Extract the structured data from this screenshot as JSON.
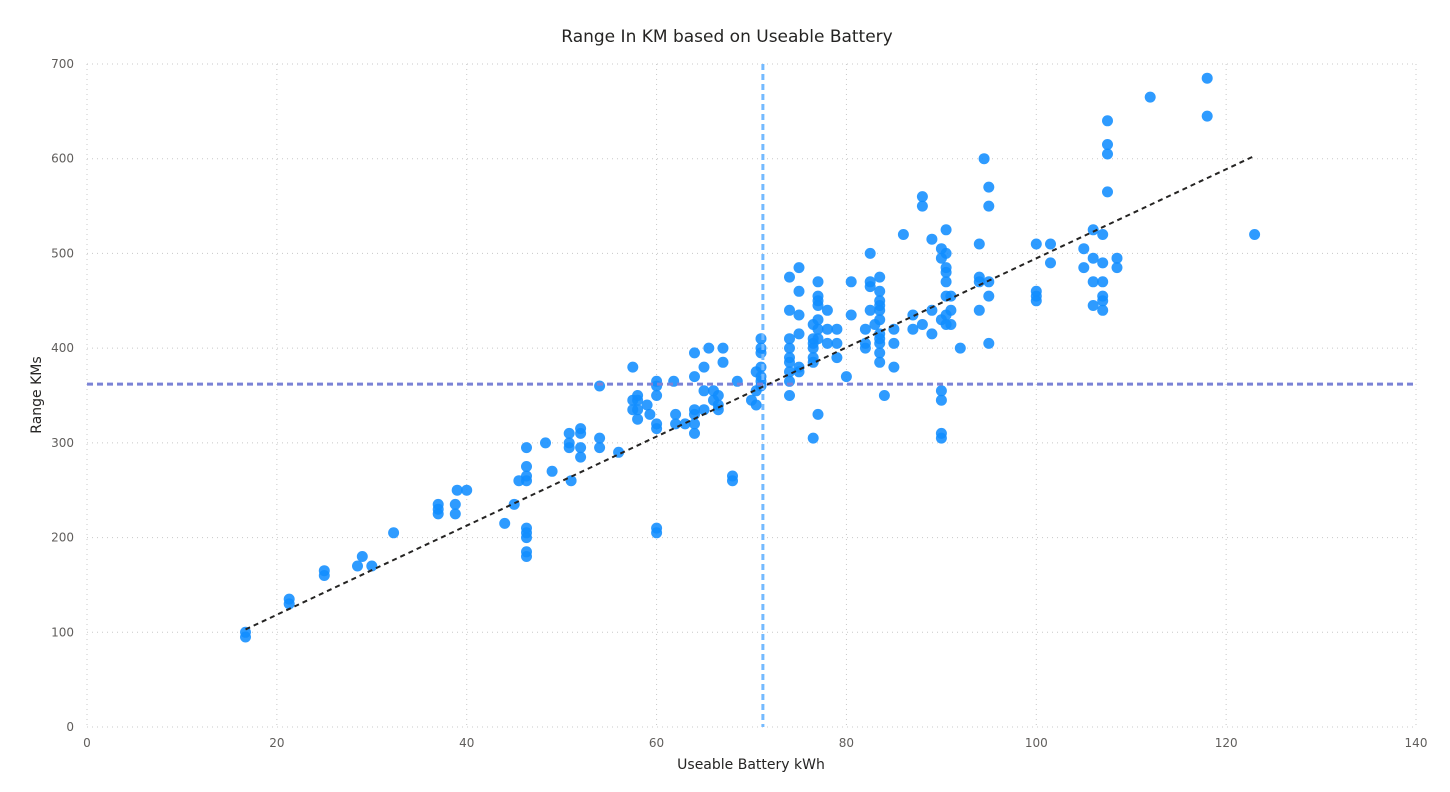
{
  "chart_data": {
    "type": "scatter",
    "title": "Range In KM based on Useable Battery",
    "xlabel": "Useable Battery kWh",
    "ylabel": "Range KMs",
    "xlim": [
      0,
      140
    ],
    "ylim": [
      0,
      700
    ],
    "x_ticks": [
      0,
      20,
      40,
      60,
      80,
      100,
      120,
      140
    ],
    "y_ticks": [
      0,
      100,
      200,
      300,
      400,
      500,
      600,
      700
    ],
    "grid": true,
    "point_color": "#118DFF",
    "trend_color": "#252423",
    "average_x": 71.2,
    "average_x_color": "#74BAFF",
    "average_y": 362,
    "average_y_color": "#7B83D6",
    "trend_line": {
      "x": [
        16.7,
        123
      ],
      "y": [
        103,
        603
      ]
    },
    "points": [
      [
        16.7,
        95
      ],
      [
        16.7,
        100
      ],
      [
        21.3,
        130
      ],
      [
        21.3,
        135
      ],
      [
        25,
        160
      ],
      [
        25,
        165
      ],
      [
        28.5,
        170
      ],
      [
        29,
        180
      ],
      [
        30,
        170
      ],
      [
        32.3,
        205
      ],
      [
        37,
        225
      ],
      [
        37,
        230
      ],
      [
        37,
        235
      ],
      [
        38.8,
        225
      ],
      [
        38.8,
        235
      ],
      [
        39,
        250
      ],
      [
        40,
        250
      ],
      [
        44,
        215
      ],
      [
        45,
        235
      ],
      [
        45.5,
        260
      ],
      [
        46.3,
        180
      ],
      [
        46.3,
        185
      ],
      [
        46.3,
        200
      ],
      [
        46.3,
        205
      ],
      [
        46.3,
        210
      ],
      [
        46.3,
        260
      ],
      [
        46.3,
        265
      ],
      [
        46.3,
        275
      ],
      [
        46.3,
        295
      ],
      [
        48.3,
        300
      ],
      [
        49,
        270
      ],
      [
        50.8,
        295
      ],
      [
        50.8,
        300
      ],
      [
        50.8,
        310
      ],
      [
        51,
        260
      ],
      [
        52,
        285
      ],
      [
        52,
        295
      ],
      [
        52,
        310
      ],
      [
        52,
        315
      ],
      [
        54,
        295
      ],
      [
        54,
        305
      ],
      [
        54,
        360
      ],
      [
        56,
        290
      ],
      [
        57.5,
        335
      ],
      [
        57.5,
        345
      ],
      [
        57.5,
        380
      ],
      [
        58,
        325
      ],
      [
        58,
        335
      ],
      [
        58,
        345
      ],
      [
        58,
        350
      ],
      [
        59,
        340
      ],
      [
        59.3,
        330
      ],
      [
        60,
        205
      ],
      [
        60,
        210
      ],
      [
        60,
        315
      ],
      [
        60,
        320
      ],
      [
        60,
        350
      ],
      [
        60,
        360
      ],
      [
        60,
        365
      ],
      [
        61.8,
        365
      ],
      [
        62,
        320
      ],
      [
        62,
        330
      ],
      [
        63,
        320
      ],
      [
        64,
        310
      ],
      [
        64,
        320
      ],
      [
        64,
        330
      ],
      [
        64,
        335
      ],
      [
        64,
        370
      ],
      [
        64,
        395
      ],
      [
        65,
        335
      ],
      [
        65,
        355
      ],
      [
        65,
        380
      ],
      [
        65.5,
        400
      ],
      [
        66,
        345
      ],
      [
        66,
        355
      ],
      [
        66.5,
        335
      ],
      [
        66.5,
        340
      ],
      [
        66.5,
        350
      ],
      [
        67,
        385
      ],
      [
        67,
        400
      ],
      [
        68,
        260
      ],
      [
        68,
        265
      ],
      [
        68.5,
        365
      ],
      [
        70,
        345
      ],
      [
        70.5,
        340
      ],
      [
        70.5,
        355
      ],
      [
        70.5,
        375
      ],
      [
        71,
        360
      ],
      [
        71,
        365
      ],
      [
        71,
        370
      ],
      [
        71,
        380
      ],
      [
        71,
        395
      ],
      [
        71,
        400
      ],
      [
        71,
        410
      ],
      [
        74,
        350
      ],
      [
        74,
        365
      ],
      [
        74,
        375
      ],
      [
        74,
        385
      ],
      [
        74,
        390
      ],
      [
        74,
        400
      ],
      [
        74,
        410
      ],
      [
        74,
        440
      ],
      [
        74,
        475
      ],
      [
        75,
        375
      ],
      [
        75,
        380
      ],
      [
        75,
        415
      ],
      [
        75,
        435
      ],
      [
        75,
        460
      ],
      [
        75,
        485
      ],
      [
        76.5,
        305
      ],
      [
        76.5,
        385
      ],
      [
        76.5,
        390
      ],
      [
        76.5,
        400
      ],
      [
        76.5,
        405
      ],
      [
        76.5,
        410
      ],
      [
        76.5,
        425
      ],
      [
        77,
        330
      ],
      [
        77,
        410
      ],
      [
        77,
        420
      ],
      [
        77,
        430
      ],
      [
        77,
        445
      ],
      [
        77,
        450
      ],
      [
        77,
        455
      ],
      [
        77,
        470
      ],
      [
        78,
        405
      ],
      [
        78,
        420
      ],
      [
        78,
        440
      ],
      [
        79,
        390
      ],
      [
        79,
        405
      ],
      [
        79,
        420
      ],
      [
        80,
        370
      ],
      [
        80.5,
        435
      ],
      [
        80.5,
        470
      ],
      [
        82,
        400
      ],
      [
        82,
        405
      ],
      [
        82,
        420
      ],
      [
        82.5,
        440
      ],
      [
        82.5,
        465
      ],
      [
        82.5,
        470
      ],
      [
        82.5,
        500
      ],
      [
        83,
        425
      ],
      [
        83.5,
        385
      ],
      [
        83.5,
        395
      ],
      [
        83.5,
        405
      ],
      [
        83.5,
        410
      ],
      [
        83.5,
        415
      ],
      [
        83.5,
        430
      ],
      [
        83.5,
        440
      ],
      [
        83.5,
        445
      ],
      [
        83.5,
        450
      ],
      [
        83.5,
        460
      ],
      [
        83.5,
        475
      ],
      [
        84,
        350
      ],
      [
        85,
        380
      ],
      [
        85,
        405
      ],
      [
        85,
        420
      ],
      [
        86,
        520
      ],
      [
        87,
        420
      ],
      [
        87,
        435
      ],
      [
        88,
        425
      ],
      [
        88,
        550
      ],
      [
        88,
        560
      ],
      [
        89,
        415
      ],
      [
        89,
        440
      ],
      [
        89,
        515
      ],
      [
        90,
        305
      ],
      [
        90,
        310
      ],
      [
        90,
        345
      ],
      [
        90,
        355
      ],
      [
        90,
        430
      ],
      [
        90,
        495
      ],
      [
        90,
        505
      ],
      [
        90.5,
        425
      ],
      [
        90.5,
        435
      ],
      [
        90.5,
        455
      ],
      [
        90.5,
        470
      ],
      [
        90.5,
        480
      ],
      [
        90.5,
        485
      ],
      [
        90.5,
        500
      ],
      [
        90.5,
        525
      ],
      [
        91,
        425
      ],
      [
        91,
        440
      ],
      [
        91,
        455
      ],
      [
        92,
        400
      ],
      [
        94,
        440
      ],
      [
        94,
        470
      ],
      [
        94,
        475
      ],
      [
        94,
        510
      ],
      [
        94.5,
        600
      ],
      [
        95,
        405
      ],
      [
        95,
        455
      ],
      [
        95,
        470
      ],
      [
        95,
        550
      ],
      [
        95,
        570
      ],
      [
        100,
        450
      ],
      [
        100,
        455
      ],
      [
        100,
        460
      ],
      [
        100,
        510
      ],
      [
        101.5,
        490
      ],
      [
        101.5,
        510
      ],
      [
        105,
        485
      ],
      [
        105,
        505
      ],
      [
        106,
        445
      ],
      [
        106,
        470
      ],
      [
        106,
        495
      ],
      [
        106,
        525
      ],
      [
        107,
        440
      ],
      [
        107,
        450
      ],
      [
        107,
        455
      ],
      [
        107,
        470
      ],
      [
        107,
        490
      ],
      [
        107,
        520
      ],
      [
        107.5,
        565
      ],
      [
        107.5,
        605
      ],
      [
        107.5,
        615
      ],
      [
        107.5,
        640
      ],
      [
        108.5,
        485
      ],
      [
        108.5,
        495
      ],
      [
        112,
        665
      ],
      [
        118,
        645
      ],
      [
        118,
        685
      ],
      [
        123,
        520
      ]
    ]
  }
}
